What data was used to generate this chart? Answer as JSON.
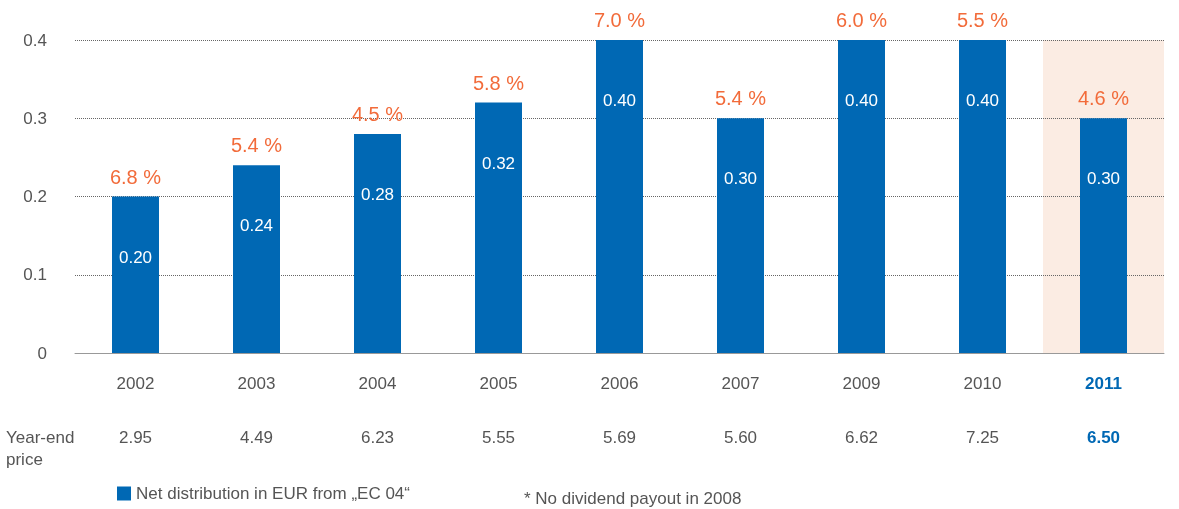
{
  "chart_data": {
    "type": "bar",
    "categories": [
      "2002",
      "2003",
      "2004",
      "2005",
      "2006",
      "2007",
      "2009",
      "2010",
      "2011"
    ],
    "series": [
      {
        "name": "Net distribution in EUR from „EC 04“",
        "color": "#0068b4",
        "values": [
          0.2,
          0.24,
          0.28,
          0.32,
          0.4,
          0.3,
          0.4,
          0.4,
          0.3
        ],
        "value_labels": [
          "0.20",
          "0.24",
          "0.28",
          "0.32",
          "0.40",
          "0.30",
          "0.40",
          "0.40",
          "0.30"
        ]
      }
    ],
    "ylim": [
      0,
      0.4
    ],
    "yticks": [
      0,
      0.1,
      0.2,
      0.3,
      0.4
    ],
    "grid": "y",
    "legend": "bottom",
    "bands": [
      {
        "axis": "x",
        "from": "2011",
        "to": "2011",
        "color": "#fbece3"
      }
    ],
    "annotations": [
      {
        "text": "6.8 %",
        "x": "2002",
        "y": 0.2
      },
      {
        "text": "5.4 %",
        "x": "2003",
        "y": 0.24
      },
      {
        "text": "4.5 %",
        "x": "2004",
        "y": 0.28
      },
      {
        "text": "5.8 %",
        "x": "2005",
        "y": 0.32
      },
      {
        "text": "7.0 %",
        "x": "2006",
        "y": 0.4
      },
      {
        "text": "5.4 %",
        "x": "2007",
        "y": 0.3
      },
      {
        "text": "6.0 %",
        "x": "2009",
        "y": 0.4
      },
      {
        "text": "5.5 %",
        "x": "2010",
        "y": 0.4
      },
      {
        "text": "4.6 %",
        "x": "2011",
        "y": 0.3
      },
      "Year-end price",
      "2.95",
      "4.49",
      "6.23",
      "5.55",
      "5.69",
      "5.60",
      "6.62",
      "7.25",
      "6.50",
      "* No dividend payout in 2008"
    ]
  }
}
